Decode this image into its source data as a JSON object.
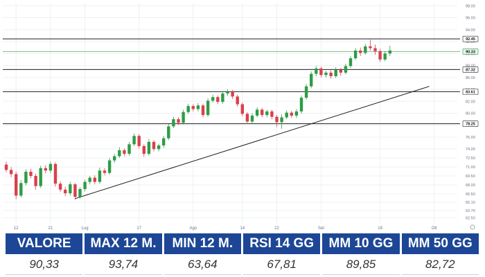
{
  "chart_data": {
    "type": "candlestick",
    "ylim": [
      61.5,
      98.5
    ],
    "grid": true,
    "y_ticks": [
      "62.50",
      "63.70",
      "65.10",
      "66.50",
      "68.00",
      "69.50",
      "71.00",
      "72.50",
      "74.00",
      "76.00",
      "78.00",
      "80.00",
      "82.00",
      "84.00",
      "86.00",
      "88.00",
      "90.00",
      "92.00",
      "94.00",
      "96.00",
      "98.00"
    ],
    "y_tick_values": [
      62.5,
      63.7,
      65.1,
      66.5,
      68.0,
      69.5,
      71.0,
      72.5,
      74.0,
      76.0,
      78.0,
      80.0,
      82.0,
      84.0,
      86.0,
      88.0,
      90.0,
      92.0,
      94.0,
      96.0,
      98.0
    ],
    "x_ticks": [
      {
        "label": "12",
        "index": 2
      },
      {
        "label": "21",
        "index": 9
      },
      {
        "label": "Lug",
        "index": 16
      },
      {
        "label": "17",
        "index": 27
      },
      {
        "label": "Ago",
        "index": 38
      },
      {
        "label": "14",
        "index": 48
      },
      {
        "label": "22",
        "index": 55
      },
      {
        "label": "Set",
        "index": 64
      },
      {
        "label": "18",
        "index": 76
      },
      {
        "label": "Ott",
        "index": 87
      }
    ],
    "candles": [
      [
        71.4,
        70.5,
        71.9,
        70.1
      ],
      [
        70.5,
        69.8,
        71.0,
        69.3
      ],
      [
        69.8,
        66.2,
        70.2,
        65.6
      ],
      [
        66.2,
        68.3,
        68.8,
        65.9
      ],
      [
        68.3,
        70.2,
        70.6,
        67.9
      ],
      [
        70.2,
        69.5,
        70.7,
        69.1
      ],
      [
        69.5,
        67.8,
        69.9,
        67.2
      ],
      [
        67.8,
        70.8,
        71.2,
        67.5
      ],
      [
        70.8,
        70.4,
        71.3,
        69.9
      ],
      [
        70.4,
        71.5,
        71.9,
        70.0
      ],
      [
        71.5,
        68.2,
        71.8,
        67.7
      ],
      [
        68.2,
        67.2,
        68.6,
        66.8
      ],
      [
        67.2,
        66.6,
        67.7,
        66.1
      ],
      [
        66.6,
        68.1,
        68.5,
        66.2
      ],
      [
        68.1,
        66.0,
        68.3,
        65.5
      ],
      [
        66.0,
        67.3,
        67.6,
        65.7
      ],
      [
        67.3,
        68.5,
        68.9,
        66.9
      ],
      [
        68.5,
        69.2,
        69.5,
        68.1
      ],
      [
        69.2,
        68.5,
        69.6,
        68.1
      ],
      [
        68.5,
        70.4,
        70.9,
        68.2
      ],
      [
        70.4,
        70.0,
        70.8,
        69.6
      ],
      [
        70.0,
        72.1,
        72.5,
        69.7
      ],
      [
        72.1,
        72.8,
        73.2,
        71.7
      ],
      [
        72.8,
        73.8,
        74.3,
        72.5
      ],
      [
        73.8,
        73.2,
        74.1,
        72.8
      ],
      [
        73.2,
        74.8,
        75.2,
        72.9
      ],
      [
        74.8,
        76.2,
        76.6,
        74.5
      ],
      [
        76.2,
        74.5,
        76.5,
        74.1
      ],
      [
        74.5,
        73.2,
        74.8,
        72.7
      ],
      [
        73.2,
        75.2,
        75.7,
        72.9
      ],
      [
        75.2,
        74.0,
        75.5,
        73.6
      ],
      [
        74.0,
        74.6,
        74.9,
        73.6
      ],
      [
        74.6,
        75.8,
        76.2,
        74.2
      ],
      [
        75.8,
        77.8,
        78.2,
        75.5
      ],
      [
        77.8,
        79.0,
        79.4,
        77.5
      ],
      [
        79.0,
        78.4,
        79.3,
        78.0
      ],
      [
        78.4,
        80.2,
        80.6,
        78.1
      ],
      [
        80.2,
        81.2,
        81.6,
        79.9
      ],
      [
        81.2,
        80.7,
        81.5,
        80.3
      ],
      [
        80.7,
        81.3,
        81.7,
        80.3
      ],
      [
        81.3,
        79.7,
        81.6,
        79.3
      ],
      [
        79.7,
        82.1,
        82.5,
        79.4
      ],
      [
        82.1,
        82.7,
        83.1,
        81.8
      ],
      [
        82.7,
        81.9,
        83.0,
        81.5
      ],
      [
        81.9,
        83.3,
        83.7,
        81.6
      ],
      [
        83.3,
        83.6,
        84.0,
        82.9
      ],
      [
        83.6,
        82.8,
        83.9,
        82.4
      ],
      [
        82.8,
        81.5,
        83.1,
        81.1
      ],
      [
        81.5,
        79.9,
        81.8,
        79.5
      ],
      [
        79.9,
        78.6,
        80.2,
        78.2
      ],
      [
        78.6,
        79.6,
        80.0,
        78.2
      ],
      [
        79.6,
        80.6,
        81.0,
        79.3
      ],
      [
        80.6,
        79.7,
        80.9,
        79.3
      ],
      [
        79.7,
        80.3,
        80.6,
        79.3
      ],
      [
        80.3,
        79.4,
        80.6,
        79.0
      ],
      [
        79.4,
        78.5,
        79.7,
        77.7
      ],
      [
        78.5,
        79.3,
        79.8,
        77.4
      ],
      [
        79.3,
        80.1,
        80.5,
        79.0
      ],
      [
        80.1,
        79.6,
        80.4,
        79.2
      ],
      [
        79.6,
        80.3,
        80.7,
        79.2
      ],
      [
        80.3,
        82.6,
        83.0,
        79.9
      ],
      [
        82.6,
        84.5,
        84.9,
        82.3
      ],
      [
        84.5,
        86.6,
        87.0,
        84.2
      ],
      [
        86.6,
        87.5,
        87.9,
        86.2
      ],
      [
        87.5,
        86.4,
        87.8,
        86.0
      ],
      [
        86.4,
        86.8,
        87.1,
        86.0
      ],
      [
        86.8,
        86.2,
        87.2,
        85.8
      ],
      [
        86.2,
        87.3,
        87.7,
        85.9
      ],
      [
        87.3,
        86.8,
        87.6,
        86.3
      ],
      [
        86.8,
        87.9,
        88.3,
        86.5
      ],
      [
        87.9,
        89.2,
        89.6,
        87.6
      ],
      [
        89.2,
        90.5,
        90.9,
        88.9
      ],
      [
        90.5,
        90.1,
        91.0,
        89.6
      ],
      [
        90.1,
        91.2,
        91.6,
        89.8
      ],
      [
        91.2,
        90.9,
        92.3,
        90.5
      ],
      [
        90.9,
        90.4,
        91.5,
        89.8
      ],
      [
        90.4,
        89.0,
        90.8,
        88.6
      ],
      [
        89.0,
        90.0,
        90.4,
        88.7
      ],
      [
        90.0,
        90.5,
        91.3,
        89.6
      ]
    ],
    "horizontal_levels": [
      "92.45",
      "90.33",
      "87.32",
      "83.61",
      "78.25"
    ],
    "horizontal_level_values": [
      92.45,
      90.33,
      87.32,
      83.61,
      78.25
    ],
    "trendline": {
      "from_index": 14,
      "from_value": 65.7,
      "to_index": 86,
      "to_value": 84.5
    },
    "colors": {
      "up": "#2e9c47",
      "down": "#d9404c",
      "level_line": "#1b1b1b",
      "current_line": "#2e9c47",
      "trendline": "#1b1b1b",
      "grid": "#eef0f3"
    }
  },
  "stats": {
    "headers": [
      "VALORE",
      "MAX 12 M.",
      "MIN 12 M.",
      "RSI 14 GG",
      "MM 10 GG",
      "MM 50 GG"
    ],
    "values": [
      "90,33",
      "93,74",
      "63,64",
      "67,81",
      "89,85",
      "82,72"
    ],
    "header_bg": "#1d4796"
  }
}
